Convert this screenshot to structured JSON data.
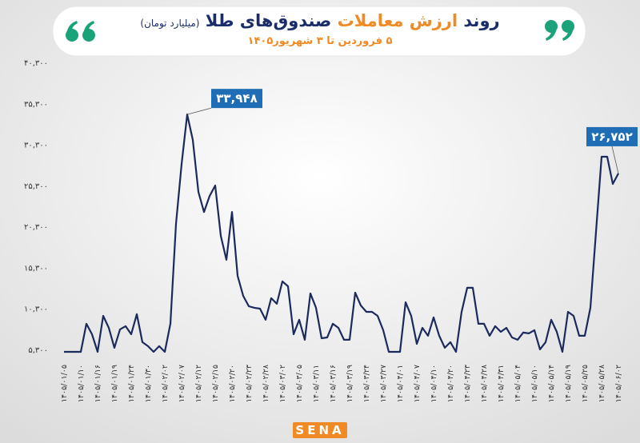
{
  "chart_data": {
    "type": "line",
    "title": {
      "start": "روند",
      "highlight": "ارزش معاملات",
      "end": "صندوق‌های طلا",
      "unit": "(میلیارد تومان)"
    },
    "subtitle": "۵ فروردین تا ۳ شهریور۱۴۰۵",
    "logo": "SENA",
    "color": "#1b2a5c",
    "label_color": "#1f6db5",
    "ylim": [
      5000,
      40300
    ],
    "yticks": [
      {
        "value": 5300,
        "label": "۵,۳۰۰"
      },
      {
        "value": 10300,
        "label": "۱۰,۳۰۰"
      },
      {
        "value": 15300,
        "label": "۱۵,۳۰۰"
      },
      {
        "value": 20300,
        "label": "۲۰,۳۰۰"
      },
      {
        "value": 25300,
        "label": "۲۵,۳۰۰"
      },
      {
        "value": 30300,
        "label": "۳۰,۳۰۰"
      },
      {
        "value": 35300,
        "label": "۳۵,۳۰۰"
      },
      {
        "value": 40300,
        "label": "۴۰,۳۰۰"
      }
    ],
    "categories": [
      "۱۴۰۵/۰۱/۰۵",
      null,
      null,
      "۱۴۰۵/۰۱/۱۰",
      null,
      null,
      "۱۴۰۵/۰۱/۱۶",
      null,
      null,
      "۱۴۰۵/۰۱/۱۹",
      null,
      null,
      "۱۴۰۵/۰۱/۲۴",
      null,
      null,
      "۱۴۰۵/۰۱/۳۰",
      null,
      null,
      "۱۴۰۵/۰۲/۰۲",
      null,
      null,
      "۱۴۰۵/۰۲/۰۷",
      null,
      null,
      "۱۴۰۵/۰۲/۱۲",
      null,
      null,
      "۱۴۰۵/۰۲/۱۵",
      null,
      null,
      "۱۴۰۵/۰۲/۲۰",
      null,
      null,
      "۱۴۰۵/۰۲/۲۳",
      null,
      null,
      "۱۴۰۵/۰۲/۲۸",
      null,
      null,
      "۱۴۰۵/۰۳/۰۲",
      null,
      null,
      "۱۴۰۵/۰۳/۰۵",
      null,
      null,
      "۱۴۰۵/۰۳/۱۱",
      null,
      null,
      "۱۴۰۵/۰۳/۱۶",
      null,
      null,
      "۱۴۰۵/۰۳/۱۹",
      null,
      null,
      "۱۴۰۵/۰۳/۲۴",
      null,
      null,
      "۱۴۰۵/۰۳/۲۷",
      null,
      null,
      "۱۴۰۵/۰۴/۰۱",
      null,
      null,
      "۱۴۰۵/۰۴/۰۷",
      null,
      null,
      "۱۴۰۵/۰۴/۱۰",
      null,
      null,
      "۱۴۰۵/۰۴/۲۰",
      null,
      null,
      "۱۴۰۵/۰۴/۲۳",
      null,
      null,
      "۱۴۰۵/۰۴/۲۸",
      null,
      null,
      "۱۴۰۵/۰۴/۳۱",
      null,
      null,
      "۱۴۰۵/۰۵/۰۴",
      null,
      null,
      "۱۴۰۵/۰۵/۱۰",
      null,
      null,
      "۱۴۰۵/۰۵/۱۴",
      null,
      null,
      "۱۴۰۵/۰۵/۱۹",
      null,
      null,
      "۱۴۰۵/۰۵/۲۵",
      null,
      null,
      "۱۴۰۵/۰۵/۲۸",
      null,
      null,
      "۱۴۰۵/۰۶/۰۲"
    ],
    "values": [
      5000,
      5000,
      5000,
      5000,
      8420,
      7150,
      5000,
      9390,
      7930,
      5500,
      7740,
      8130,
      7150,
      9590,
      6180,
      5690,
      5000,
      5690,
      5000,
      8420,
      20600,
      27910,
      33948,
      30840,
      24500,
      22060,
      24010,
      25280,
      19140,
      16220,
      22060,
      14270,
      11830,
      10560,
      10370,
      10270,
      8910,
      11540,
      10860,
      13590,
      13000,
      7150,
      8910,
      6470,
      12120,
      10370,
      6660,
      6760,
      8420,
      7930,
      6470,
      6470,
      12220,
      10660,
      9880,
      9880,
      9390,
      7640,
      5000,
      5000,
      5000,
      11050,
      9390,
      5980,
      7930,
      6960,
      9200,
      6960,
      5500,
      6180,
      5000,
      9880,
      12810,
      12810,
      8420,
      8420,
      6960,
      8130,
      7440,
      7930,
      6760,
      6470,
      7350,
      7250,
      7640,
      5300,
      6180,
      8910,
      7440,
      5000,
      9880,
      9390,
      6960,
      6960,
      10370,
      19630,
      28790,
      28790,
      25480,
      26752
    ],
    "value_labels": [
      null,
      null,
      null,
      null,
      null,
      null,
      null,
      null,
      null,
      null,
      null,
      null,
      null,
      null,
      null,
      null,
      null,
      null,
      null,
      null,
      null,
      null,
      "۳۳,۹۴۸",
      null,
      null,
      null,
      null,
      null,
      null,
      null,
      null,
      null,
      null,
      null,
      null,
      null,
      null,
      null,
      null,
      null,
      null,
      null,
      null,
      null,
      null,
      null,
      null,
      null,
      null,
      null,
      null,
      null,
      null,
      null,
      null,
      null,
      null,
      null,
      null,
      null,
      null,
      null,
      null,
      null,
      null,
      null,
      null,
      null,
      null,
      null,
      null,
      null,
      null,
      null,
      null,
      null,
      null,
      null,
      null,
      null,
      null,
      null,
      null,
      null,
      null,
      null,
      null,
      null,
      null,
      null,
      null,
      null,
      null,
      null,
      null,
      null,
      null,
      null,
      null,
      "۲۶,۷۵۲"
    ]
  }
}
